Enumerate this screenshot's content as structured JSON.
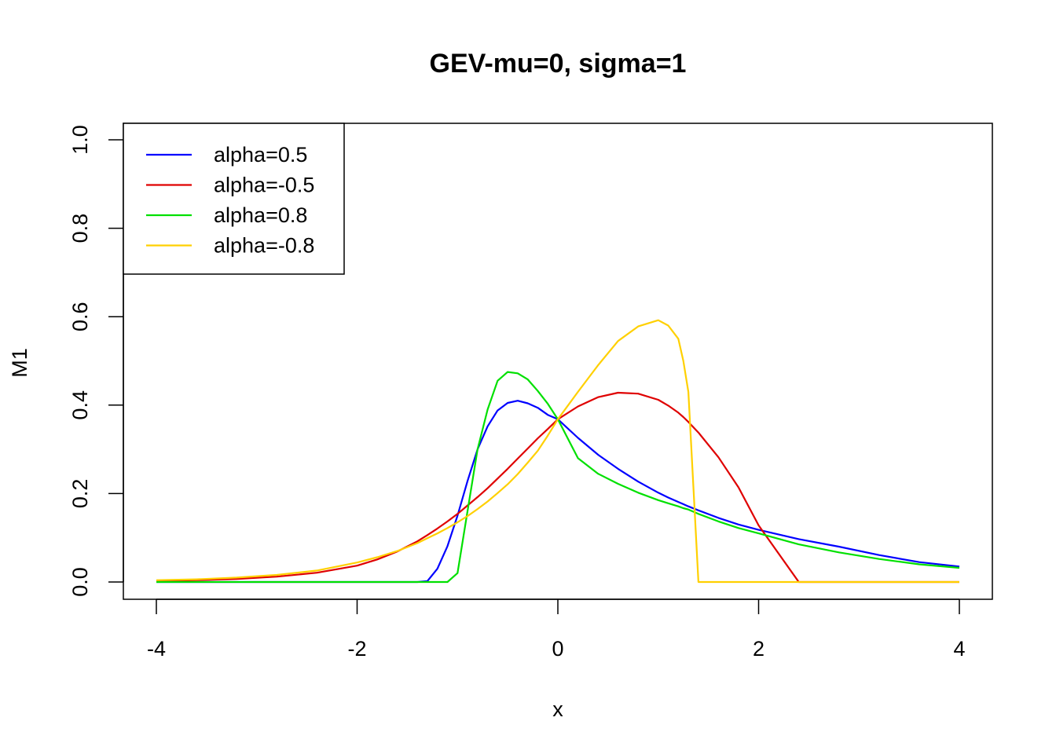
{
  "chart_data": {
    "type": "line",
    "title": "GEV-mu=0, sigma=1",
    "xlabel": "x",
    "ylabel": "M1",
    "xlim": [
      -4,
      4
    ],
    "ylim": [
      0,
      1
    ],
    "x_ticks": [
      "-4",
      "-2",
      "0",
      "2",
      "4"
    ],
    "y_ticks": [
      "0.0",
      "0.2",
      "0.4",
      "0.6",
      "0.8",
      "1.0"
    ],
    "grid": false,
    "legend_position": "top-left",
    "x": [
      -4.0,
      -3.6,
      -3.2,
      -2.8,
      -2.4,
      -2.0,
      -1.8,
      -1.6,
      -1.4,
      -1.3,
      -1.2,
      -1.1,
      -1.0,
      -0.9,
      -0.8,
      -0.7,
      -0.6,
      -0.5,
      -0.4,
      -0.3,
      -0.2,
      -0.1,
      0.0,
      0.2,
      0.4,
      0.6,
      0.8,
      1.0,
      1.1,
      1.2,
      1.25,
      1.3,
      1.4,
      1.6,
      1.8,
      2.0,
      2.4,
      2.8,
      3.2,
      3.6,
      4.0
    ],
    "series": [
      {
        "name": "alpha=0.5",
        "color": "#0000FF",
        "values": [
          0.0,
          0.0,
          0.0,
          0.0,
          0.0,
          0.0,
          0.0,
          0.0,
          0.0,
          0.002,
          0.03,
          0.081,
          0.15,
          0.228,
          0.3,
          0.352,
          0.388,
          0.405,
          0.41,
          0.404,
          0.394,
          0.378,
          0.368,
          0.326,
          0.288,
          0.256,
          0.227,
          0.202,
          0.191,
          0.181,
          0.176,
          0.171,
          0.162,
          0.145,
          0.13,
          0.118,
          0.097,
          0.08,
          0.061,
          0.045,
          0.035
        ]
      },
      {
        "name": "alpha=-0.5",
        "color": "#DF0000",
        "values": [
          0.002,
          0.004,
          0.007,
          0.012,
          0.021,
          0.037,
          0.051,
          0.069,
          0.092,
          0.106,
          0.121,
          0.137,
          0.154,
          0.173,
          0.192,
          0.212,
          0.234,
          0.256,
          0.279,
          0.302,
          0.325,
          0.346,
          0.368,
          0.397,
          0.418,
          0.428,
          0.426,
          0.412,
          0.399,
          0.383,
          0.373,
          0.362,
          0.338,
          0.282,
          0.214,
          0.128,
          0.0,
          0.0,
          0.0,
          0.0,
          0.0
        ]
      },
      {
        "name": "alpha=0.8",
        "color": "#00E000",
        "values": [
          0.0,
          0.0,
          0.0,
          0.0,
          0.0,
          0.0,
          0.0,
          0.0,
          0.0,
          0.0,
          0.0,
          0.0,
          0.02,
          0.16,
          0.3,
          0.39,
          0.455,
          0.475,
          0.472,
          0.458,
          0.432,
          0.403,
          0.368,
          0.28,
          0.245,
          0.222,
          0.202,
          0.185,
          0.178,
          0.171,
          0.167,
          0.164,
          0.154,
          0.137,
          0.122,
          0.11,
          0.085,
          0.067,
          0.052,
          0.04,
          0.032
        ]
      },
      {
        "name": "alpha=-0.8",
        "color": "#FFD000",
        "values": [
          0.004,
          0.006,
          0.01,
          0.016,
          0.026,
          0.044,
          0.056,
          0.07,
          0.088,
          0.099,
          0.11,
          0.122,
          0.135,
          0.149,
          0.165,
          0.182,
          0.201,
          0.221,
          0.244,
          0.27,
          0.297,
          0.331,
          0.368,
          0.43,
          0.49,
          0.545,
          0.578,
          0.592,
          0.58,
          0.55,
          0.5,
          0.43,
          0.0,
          0.0,
          0.0,
          0.0,
          0.0,
          0.0,
          0.0,
          0.0,
          0.0
        ]
      }
    ]
  }
}
